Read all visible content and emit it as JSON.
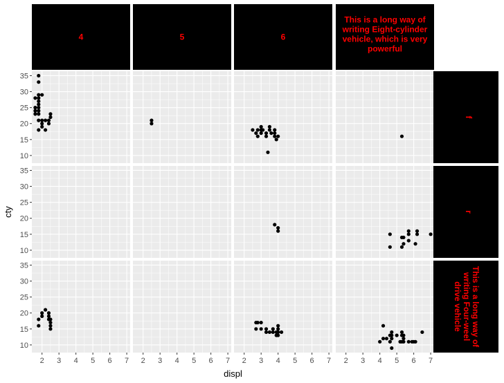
{
  "chart_data": {
    "type": "scatter",
    "facet_type": "grid",
    "xlabel": "displ",
    "ylabel": "cty",
    "xlim": [
      1.4,
      7.2
    ],
    "ylim": [
      7.6,
      36.4
    ],
    "x_ticks": [
      2,
      3,
      4,
      5,
      6,
      7
    ],
    "y_ticks": [
      10,
      15,
      20,
      25,
      30,
      35
    ],
    "col_strips": [
      "4",
      "5",
      "6",
      "This is a long way of writing Eight-cylinder vehicle, which is very powerful"
    ],
    "row_strips": [
      "f",
      "r",
      "This is a long way of writing Four-weel drive vehicle"
    ],
    "strip_background": "#000000",
    "strip_text_color": "#ff0000",
    "panel_background": "#ebebeb",
    "grid_color": "#ffffff",
    "point_color": "#000000",
    "panels": [
      {
        "row": 0,
        "col": 0,
        "points": [
          [
            1.8,
            35
          ],
          [
            1.8,
            33
          ],
          [
            1.8,
            29
          ],
          [
            1.8,
            28
          ],
          [
            1.8,
            27
          ],
          [
            1.6,
            28
          ],
          [
            1.6,
            25
          ],
          [
            1.6,
            24
          ],
          [
            1.6,
            23
          ],
          [
            1.8,
            26
          ],
          [
            1.8,
            25
          ],
          [
            1.8,
            24
          ],
          [
            1.8,
            23
          ],
          [
            1.8,
            21
          ],
          [
            1.8,
            18
          ],
          [
            2.0,
            29
          ],
          [
            2.0,
            21
          ],
          [
            2.0,
            20
          ],
          [
            2.0,
            19
          ],
          [
            2.2,
            21
          ],
          [
            2.2,
            18
          ],
          [
            2.4,
            21
          ],
          [
            2.4,
            20
          ],
          [
            2.5,
            22
          ],
          [
            2.5,
            23
          ]
        ]
      },
      {
        "row": 0,
        "col": 1,
        "points": [
          [
            2.5,
            21
          ],
          [
            2.5,
            20
          ]
        ]
      },
      {
        "row": 0,
        "col": 2,
        "points": [
          [
            2.5,
            18
          ],
          [
            2.7,
            17
          ],
          [
            2.8,
            16
          ],
          [
            2.8,
            18
          ],
          [
            3.0,
            17
          ],
          [
            3.0,
            18
          ],
          [
            3.0,
            19
          ],
          [
            3.1,
            18
          ],
          [
            3.3,
            16
          ],
          [
            3.3,
            17
          ],
          [
            3.4,
            11
          ],
          [
            3.5,
            18
          ],
          [
            3.5,
            19
          ],
          [
            3.6,
            17
          ],
          [
            3.8,
            16
          ],
          [
            3.8,
            17
          ],
          [
            3.8,
            18
          ],
          [
            3.9,
            15
          ],
          [
            4.0,
            16
          ]
        ]
      },
      {
        "row": 0,
        "col": 3,
        "points": [
          [
            5.3,
            16
          ]
        ]
      },
      {
        "row": 1,
        "col": 2,
        "points": [
          [
            3.8,
            18
          ],
          [
            4.0,
            17
          ],
          [
            4.0,
            16
          ]
        ]
      },
      {
        "row": 1,
        "col": 3,
        "points": [
          [
            4.6,
            15
          ],
          [
            4.6,
            11
          ],
          [
            5.3,
            14
          ],
          [
            5.3,
            11
          ],
          [
            5.4,
            12
          ],
          [
            5.4,
            14
          ],
          [
            5.7,
            13
          ],
          [
            5.7,
            16
          ],
          [
            5.7,
            15
          ],
          [
            6.1,
            12
          ],
          [
            6.2,
            15
          ],
          [
            6.2,
            16
          ],
          [
            7.0,
            15
          ]
        ]
      },
      {
        "row": 2,
        "col": 0,
        "points": [
          [
            1.8,
            18
          ],
          [
            1.8,
            16
          ],
          [
            2.0,
            19
          ],
          [
            2.0,
            20
          ],
          [
            2.2,
            21
          ],
          [
            2.4,
            19
          ],
          [
            2.4,
            18
          ],
          [
            2.4,
            20
          ],
          [
            2.5,
            17
          ],
          [
            2.5,
            18
          ],
          [
            2.5,
            16
          ],
          [
            2.5,
            15
          ]
        ]
      },
      {
        "row": 2,
        "col": 2,
        "points": [
          [
            2.7,
            17
          ],
          [
            2.7,
            15
          ],
          [
            2.8,
            17
          ],
          [
            3.0,
            15
          ],
          [
            3.0,
            17
          ],
          [
            3.3,
            15
          ],
          [
            3.3,
            14
          ],
          [
            3.5,
            14
          ],
          [
            3.7,
            15
          ],
          [
            3.7,
            14
          ],
          [
            3.9,
            13
          ],
          [
            3.9,
            14
          ],
          [
            4.0,
            15
          ],
          [
            4.0,
            14
          ],
          [
            4.0,
            13
          ],
          [
            4.0,
            16
          ],
          [
            4.2,
            14
          ]
        ]
      },
      {
        "row": 2,
        "col": 3,
        "points": [
          [
            4.0,
            11
          ],
          [
            4.2,
            12
          ],
          [
            4.2,
            16
          ],
          [
            4.4,
            12
          ],
          [
            4.6,
            11
          ],
          [
            4.7,
            9
          ],
          [
            4.7,
            13
          ],
          [
            4.7,
            14
          ],
          [
            4.7,
            12
          ],
          [
            5.0,
            13
          ],
          [
            5.2,
            11
          ],
          [
            5.3,
            11
          ],
          [
            5.3,
            13
          ],
          [
            5.3,
            14
          ],
          [
            5.4,
            12
          ],
          [
            5.4,
            11
          ],
          [
            5.7,
            11
          ],
          [
            5.9,
            11
          ],
          [
            6.0,
            11
          ],
          [
            6.1,
            11
          ],
          [
            6.5,
            14
          ],
          [
            4.6,
            13
          ],
          [
            5.4,
            13
          ]
        ]
      }
    ]
  }
}
